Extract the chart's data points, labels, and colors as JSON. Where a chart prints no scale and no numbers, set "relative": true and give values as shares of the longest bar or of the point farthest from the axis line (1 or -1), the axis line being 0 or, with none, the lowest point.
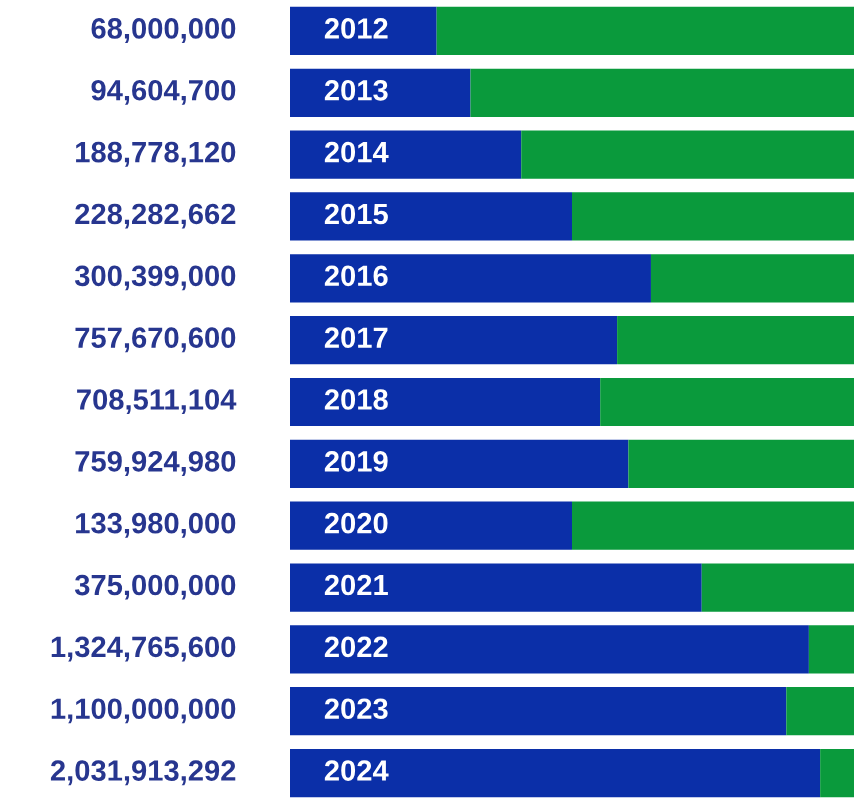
{
  "chart_data": {
    "type": "bar",
    "orientation": "horizontal",
    "stacked": true,
    "relative": true,
    "categories": [
      "2012",
      "2013",
      "2014",
      "2015",
      "2016",
      "2017",
      "2018",
      "2019",
      "2020",
      "2021",
      "2022",
      "2023",
      "2024"
    ],
    "series": [
      {
        "color": "#0b2fa8",
        "values": [
          0.26,
          0.32,
          0.41,
          0.5,
          0.64,
          0.58,
          0.55,
          0.6,
          0.5,
          0.73,
          0.92,
          0.88,
          0.94
        ]
      },
      {
        "color": "#0a9a3c",
        "values": [
          0.74,
          0.68,
          0.59,
          0.5,
          0.36,
          0.42,
          0.45,
          0.4,
          0.5,
          0.27,
          0.08,
          0.12,
          0.06
        ]
      }
    ],
    "annotations": [
      "68,000,000",
      "94,604,700",
      "188,778,120",
      "228,282,662",
      "300,399,000",
      "757,670,600",
      "708,511,104",
      "759,924,980",
      "133,980,000",
      "375,000,000",
      "1,324,765,600",
      "1,100,000,000",
      "2,031,913,292"
    ]
  }
}
